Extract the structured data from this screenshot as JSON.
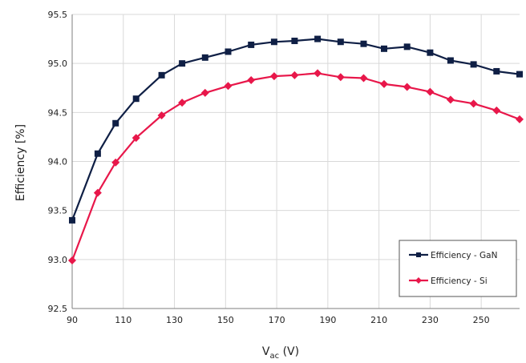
{
  "chart_data": {
    "type": "line",
    "title": "",
    "xlabel_main": "V",
    "xlabel_sub": "ac",
    "xlabel_unit": " (V)",
    "ylabel": "Efficiency [%]",
    "xlim": [
      90,
      265
    ],
    "ylim": [
      92.5,
      95.5
    ],
    "xticks": [
      "90",
      "110",
      "130",
      "150",
      "170",
      "190",
      "210",
      "230",
      "250"
    ],
    "yticks": [
      "92.5",
      "93.0",
      "93.5",
      "94.0",
      "94.5",
      "95.0",
      "95.5"
    ],
    "grid": true,
    "legend_position": "bottom-right",
    "x": [
      90,
      100,
      107,
      115,
      125,
      133,
      142,
      151,
      160,
      169,
      177,
      186,
      195,
      204,
      212,
      221,
      230,
      238,
      247,
      256,
      265
    ],
    "series": [
      {
        "name": "Efficiency - GaN",
        "color": "#0f1f45",
        "marker": "square",
        "values": [
          93.4,
          94.08,
          94.39,
          94.64,
          94.88,
          95.0,
          95.06,
          95.12,
          95.19,
          95.22,
          95.23,
          95.25,
          95.22,
          95.2,
          95.15,
          95.17,
          95.11,
          95.03,
          94.99,
          94.92,
          94.89
        ]
      },
      {
        "name": "Efficiency - Si",
        "color": "#e8174a",
        "marker": "diamond",
        "values": [
          92.99,
          93.68,
          93.99,
          94.24,
          94.47,
          94.6,
          94.7,
          94.77,
          94.83,
          94.87,
          94.88,
          94.9,
          94.86,
          94.85,
          94.79,
          94.76,
          94.71,
          94.63,
          94.59,
          94.52,
          94.43
        ]
      }
    ]
  }
}
